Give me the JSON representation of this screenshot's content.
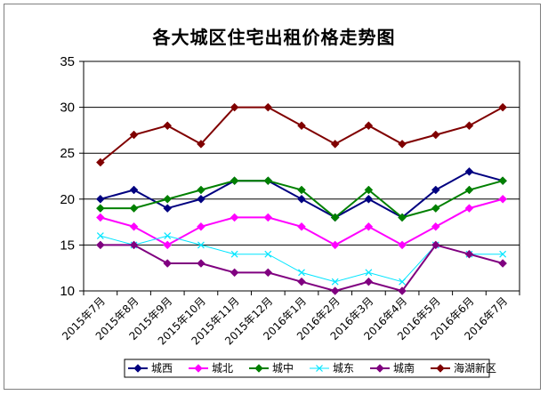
{
  "chart_data": {
    "type": "line",
    "title": "各大城区住宅出租价格走势图",
    "xlabel": "",
    "ylabel": "",
    "ylim": [
      10,
      35
    ],
    "yticks": [
      10,
      15,
      20,
      25,
      30,
      35
    ],
    "grid": "horizontal",
    "legend_position": "bottom",
    "categories": [
      "2015年7月",
      "2015年8月",
      "2015年9月",
      "2015年10月",
      "2015年11月",
      "2015年12月",
      "2016年1月",
      "2016年2月",
      "2016年3月",
      "2016年4月",
      "2016年5月",
      "2016年6月",
      "2016年7月"
    ],
    "series": [
      {
        "name": "城西",
        "color": "#000080",
        "marker": "diamond",
        "values": [
          20,
          21,
          19,
          20,
          22,
          22,
          20,
          18,
          20,
          18,
          21,
          23,
          22
        ]
      },
      {
        "name": "城北",
        "color": "#ff00ff",
        "marker": "diamond",
        "values": [
          18,
          17,
          15,
          17,
          18,
          18,
          17,
          15,
          17,
          15,
          17,
          19,
          20
        ]
      },
      {
        "name": "城中",
        "color": "#008000",
        "marker": "diamond",
        "values": [
          19,
          19,
          20,
          21,
          22,
          22,
          21,
          18,
          21,
          18,
          19,
          21,
          22
        ]
      },
      {
        "name": "城东",
        "color": "#00e5ff",
        "marker": "x",
        "values": [
          16,
          15,
          16,
          15,
          14,
          14,
          12,
          11,
          12,
          11,
          15,
          14,
          14
        ]
      },
      {
        "name": "城南",
        "color": "#800080",
        "marker": "diamond",
        "values": [
          15,
          15,
          13,
          13,
          12,
          12,
          11,
          10,
          11,
          10,
          15,
          14,
          13
        ]
      },
      {
        "name": "海湖新区",
        "color": "#800000",
        "marker": "diamond",
        "values": [
          24,
          27,
          28,
          26,
          30,
          30,
          28,
          26,
          28,
          26,
          27,
          28,
          30
        ]
      }
    ]
  }
}
